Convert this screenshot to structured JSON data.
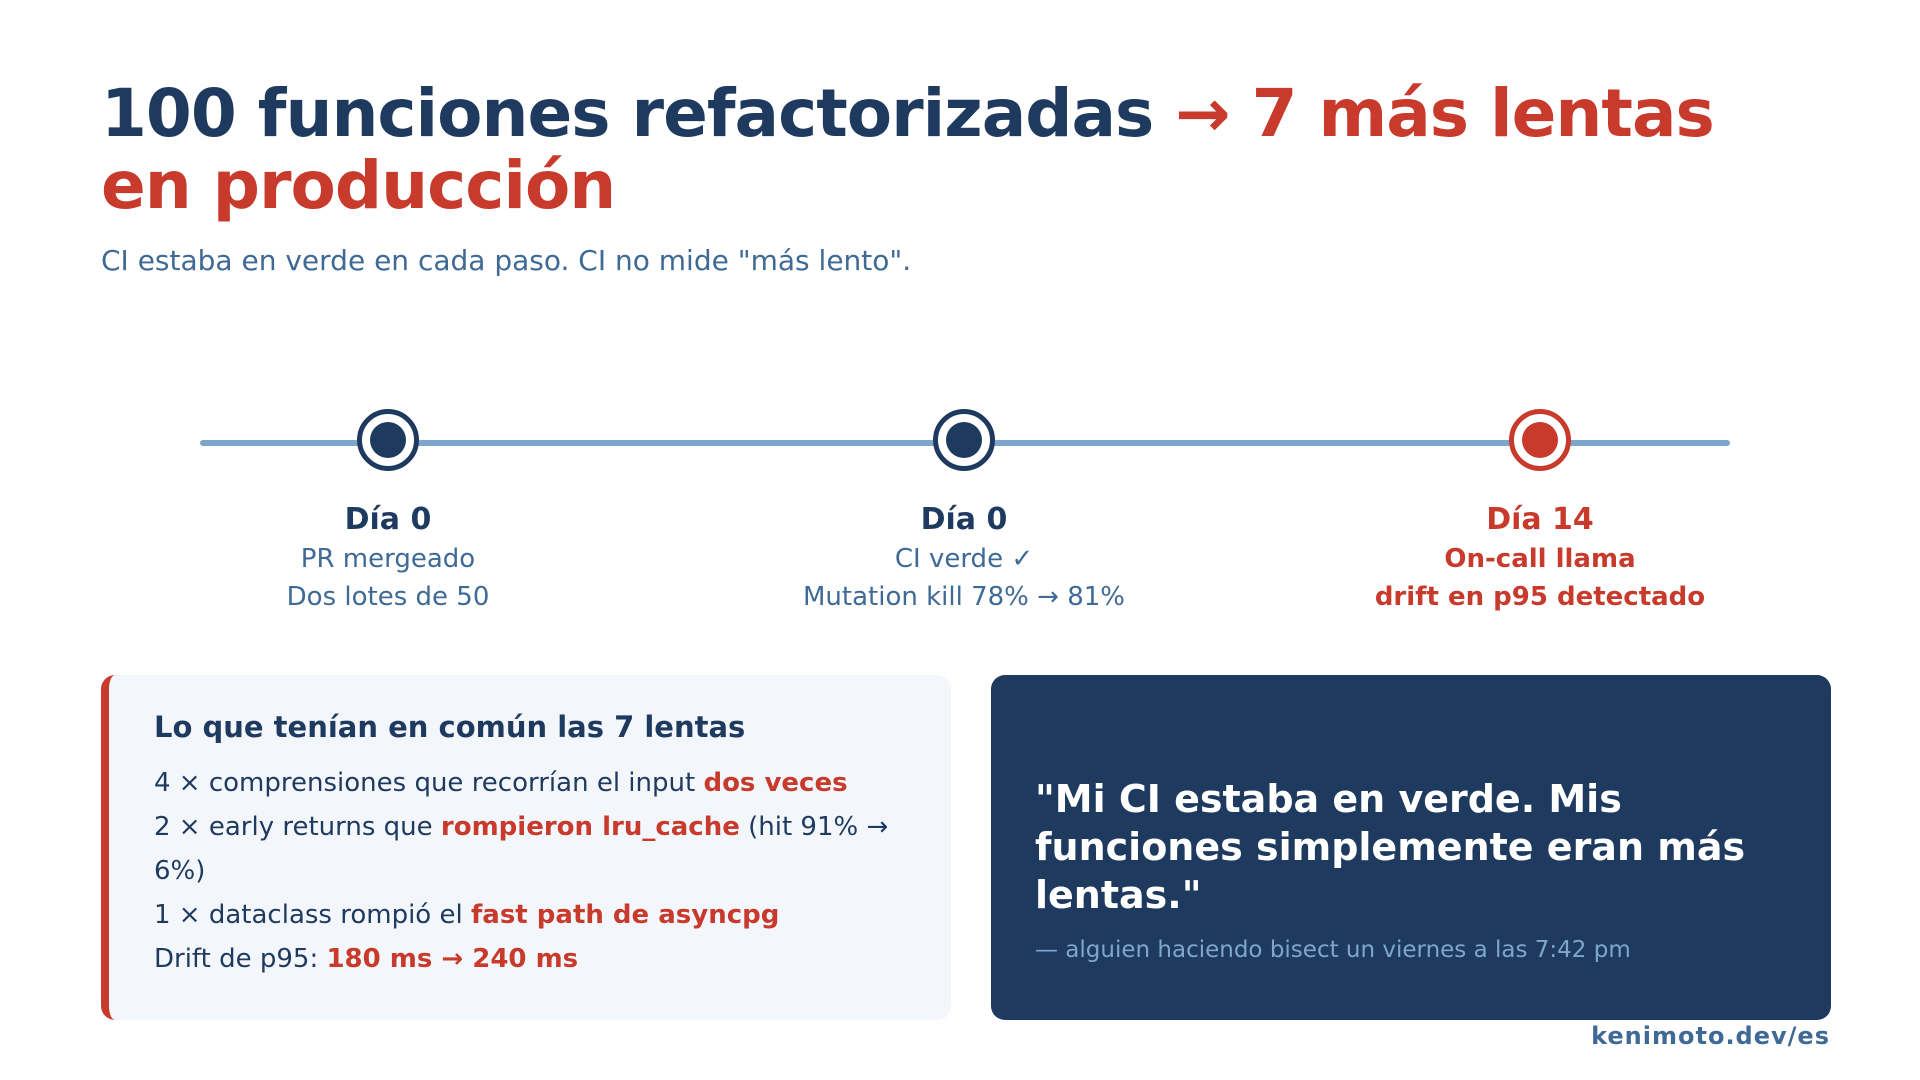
{
  "title": {
    "main": "100 funciones refactorizadas",
    "accent": "→ 7 más lentas en producción"
  },
  "subtitle": "CI estaba en verde en cada paso. CI no mide \"más lento\".",
  "timeline": {
    "steps": [
      {
        "day": "Día 0",
        "line1": "PR mergeado",
        "line2": "Dos lotes de 50"
      },
      {
        "day": "Día 0",
        "line1": "CI verde ✓",
        "line2": "Mutation kill 78% → 81%"
      },
      {
        "day": "Día 14",
        "line1": "On-call llama",
        "line2": "drift en p95 detectado"
      }
    ]
  },
  "summary": {
    "heading": "Lo que tenían en común las 7 lentas",
    "row1": {
      "pre": "4 × comprensiones que recorrían el input ",
      "hl": "dos veces"
    },
    "row2": {
      "pre": "2 × early returns que ",
      "hl": "rompieron lru_cache",
      "post": " (hit 91% → 6%)"
    },
    "row3": {
      "pre": "1 × dataclass rompió el ",
      "hl": "fast path de asyncpg"
    },
    "row4": {
      "pre": "Drift de p95: ",
      "hl": "180 ms → 240 ms"
    }
  },
  "quote": {
    "text": "\"Mi CI estaba en verde. Mis funciones simplemente eran más lentas.\"",
    "attribution": "— alguien haciendo bisect un viernes a las 7:42 pm"
  },
  "footer": "kenimoto.dev/es",
  "colors": {
    "navy": "#1f3a5f",
    "red": "#c83a2c",
    "muted_blue": "#3f6a96",
    "line_blue": "#7ea6cc",
    "card_bg": "#f3f6fb"
  }
}
